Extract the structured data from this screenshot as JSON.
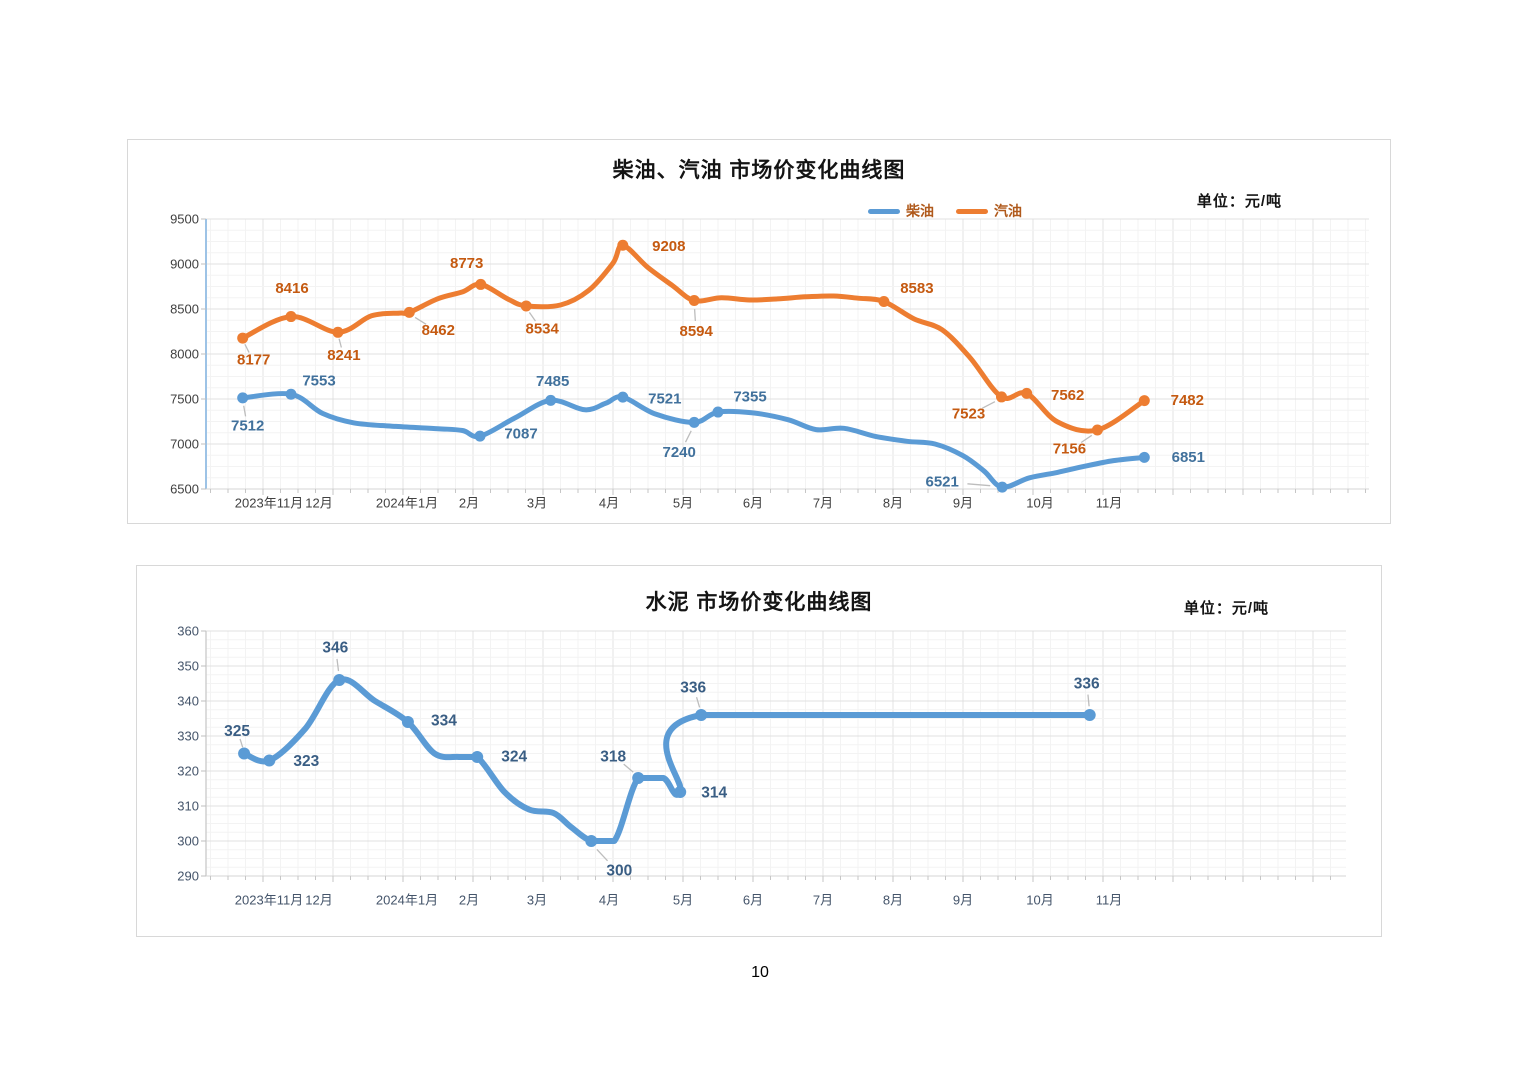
{
  "page": {
    "number": "10"
  },
  "chart_data": [
    {
      "type": "line",
      "title": "柴油、汽油 市场价变化曲线图",
      "unit_label": "单位：元/吨",
      "legend": [
        {
          "name": "柴油",
          "color": "#5B9BD5"
        },
        {
          "name": "汽油",
          "color": "#ED7D31"
        }
      ],
      "legend_position": "top",
      "grid": true,
      "y_axis": {
        "min": 6500,
        "max": 9500,
        "step": 500,
        "ticks": [
          "9500",
          "9000",
          "8500",
          "8000",
          "7500",
          "7000",
          "6500"
        ]
      },
      "x_ticks": [
        "2023年11月",
        "12月",
        "2024年1月",
        "2月",
        "3月",
        "4月",
        "5月",
        "6月",
        "7月",
        "8月",
        "9月",
        "10月",
        "11月"
      ],
      "series": [
        {
          "name": "柴油",
          "color": "#5B9BD5",
          "label_color": "#41719C",
          "points": [
            {
              "t": -0.29,
              "v": 7512,
              "label": "7512",
              "dx": 5,
              "dy": 28,
              "leader": true
            },
            {
              "t": 0.4,
              "v": 7553,
              "label": "7553",
              "dx": 28,
              "dy": -13
            },
            {
              "t": 0.85,
              "v": 7340
            },
            {
              "t": 1.3,
              "v": 7235
            },
            {
              "t": 1.9,
              "v": 7195
            },
            {
              "t": 2.5,
              "v": 7170
            },
            {
              "t": 2.85,
              "v": 7150
            },
            {
              "t": 3.1,
              "v": 7087,
              "label": "7087",
              "dx": 41,
              "dy": -2
            },
            {
              "t": 3.6,
              "v": 7290
            },
            {
              "t": 4.11,
              "v": 7485,
              "label": "7485",
              "dx": 2,
              "dy": -19
            },
            {
              "t": 4.6,
              "v": 7380
            },
            {
              "t": 4.9,
              "v": 7455
            },
            {
              "t": 5.14,
              "v": 7521,
              "label": "7521",
              "dx": 42,
              "dy": 2
            },
            {
              "t": 5.6,
              "v": 7335
            },
            {
              "t": 6.16,
              "v": 7240,
              "label": "7240",
              "dx": -15,
              "dy": 30,
              "leader": true
            },
            {
              "t": 6.5,
              "v": 7355,
              "label": "7355",
              "dx": 32,
              "dy": -15
            },
            {
              "t": 7.0,
              "v": 7345
            },
            {
              "t": 7.5,
              "v": 7270
            },
            {
              "t": 7.9,
              "v": 7160
            },
            {
              "t": 8.3,
              "v": 7175
            },
            {
              "t": 8.75,
              "v": 7085
            },
            {
              "t": 9.2,
              "v": 7030
            },
            {
              "t": 9.6,
              "v": 7000
            },
            {
              "t": 10.0,
              "v": 6870
            },
            {
              "t": 10.3,
              "v": 6700
            },
            {
              "t": 10.56,
              "v": 6521,
              "label": "6521",
              "dx": -60,
              "dy": -5,
              "leader": true
            },
            {
              "t": 10.95,
              "v": 6625
            },
            {
              "t": 11.35,
              "v": 6685
            },
            {
              "t": 11.75,
              "v": 6755
            },
            {
              "t": 12.15,
              "v": 6815
            },
            {
              "t": 12.59,
              "v": 6851,
              "label": "6851",
              "dx": 44,
              "dy": 0
            }
          ]
        },
        {
          "name": "汽油",
          "color": "#ED7D31",
          "label_color": "#C55A11",
          "points": [
            {
              "t": -0.29,
              "v": 8177,
              "label": "8177",
              "dx": 11,
              "dy": 22,
              "leader": true
            },
            {
              "t": 0.4,
              "v": 8416,
              "label": "8416",
              "dx": 1,
              "dy": -28
            },
            {
              "t": 1.07,
              "v": 8241,
              "label": "8241",
              "dx": 6,
              "dy": 23,
              "leader": true
            },
            {
              "t": 1.55,
              "v": 8425
            },
            {
              "t": 1.95,
              "v": 8455
            },
            {
              "t": 2.09,
              "v": 8462,
              "label": "8462",
              "dx": 29,
              "dy": 18,
              "leader": true
            },
            {
              "t": 2.5,
              "v": 8615
            },
            {
              "t": 2.85,
              "v": 8690
            },
            {
              "t": 3.11,
              "v": 8773,
              "label": "8773",
              "dx": -14,
              "dy": -21
            },
            {
              "t": 3.5,
              "v": 8610
            },
            {
              "t": 3.76,
              "v": 8534,
              "label": "8534",
              "dx": 16,
              "dy": 23,
              "leader": true
            },
            {
              "t": 4.25,
              "v": 8545
            },
            {
              "t": 4.65,
              "v": 8705
            },
            {
              "t": 5.0,
              "v": 9010
            },
            {
              "t": 5.14,
              "v": 9208,
              "label": "9208",
              "dx": 46,
              "dy": 1
            },
            {
              "t": 5.5,
              "v": 8960
            },
            {
              "t": 5.85,
              "v": 8760
            },
            {
              "t": 6.16,
              "v": 8594,
              "label": "8594",
              "dx": 2,
              "dy": 31,
              "leader": true
            },
            {
              "t": 6.55,
              "v": 8625
            },
            {
              "t": 6.95,
              "v": 8600
            },
            {
              "t": 7.35,
              "v": 8612
            },
            {
              "t": 7.75,
              "v": 8635
            },
            {
              "t": 8.15,
              "v": 8645
            },
            {
              "t": 8.5,
              "v": 8620
            },
            {
              "t": 8.87,
              "v": 8583,
              "label": "8583",
              "dx": 33,
              "dy": -13
            },
            {
              "t": 9.3,
              "v": 8390
            },
            {
              "t": 9.7,
              "v": 8270
            },
            {
              "t": 10.1,
              "v": 7960
            },
            {
              "t": 10.55,
              "v": 7523,
              "label": "7523",
              "dx": -33,
              "dy": 17,
              "leader": true
            },
            {
              "t": 10.91,
              "v": 7562,
              "label": "7562",
              "dx": 41,
              "dy": 2
            },
            {
              "t": 11.35,
              "v": 7245
            },
            {
              "t": 11.92,
              "v": 7156,
              "label": "7156",
              "dx": -28,
              "dy": 19,
              "leader": true
            },
            {
              "t": 12.59,
              "v": 7482,
              "label": "7482",
              "dx": 43,
              "dy": 0
            }
          ]
        }
      ]
    },
    {
      "type": "line",
      "title": "水泥 市场价变化曲线图",
      "unit_label": "单位：元/吨",
      "legend": [],
      "grid": true,
      "y_axis": {
        "min": 290,
        "max": 360,
        "step": 10,
        "ticks": [
          "360",
          "350",
          "340",
          "330",
          "320",
          "310",
          "300",
          "290"
        ]
      },
      "x_ticks": [
        "2023年11月",
        "12月",
        "2024年1月",
        "2月",
        "3月",
        "4月",
        "5月",
        "6月",
        "7月",
        "8月",
        "9月",
        "10月",
        "11月"
      ],
      "series": [
        {
          "name": "水泥",
          "color": "#5B9BD5",
          "label_color": "#3A5E84",
          "points": [
            {
              "t": -0.27,
              "v": 325,
              "label": "325",
              "dx": -7,
              "dy": -22,
              "leader": true
            },
            {
              "t": 0.09,
              "v": 323,
              "label": "323",
              "dx": 37,
              "dy": 1
            },
            {
              "t": 0.6,
              "v": 332
            },
            {
              "t": 1.09,
              "v": 346,
              "label": "346",
              "dx": -4,
              "dy": -32,
              "leader": true
            },
            {
              "t": 1.6,
              "v": 340
            },
            {
              "t": 2.07,
              "v": 334,
              "label": "334",
              "dx": 36,
              "dy": -1
            },
            {
              "t": 2.45,
              "v": 325
            },
            {
              "t": 2.8,
              "v": 324
            },
            {
              "t": 3.06,
              "v": 324,
              "label": "324",
              "dx": 37,
              "dy": 0
            },
            {
              "t": 3.45,
              "v": 314
            },
            {
              "t": 3.8,
              "v": 309
            },
            {
              "t": 4.15,
              "v": 308
            },
            {
              "t": 4.4,
              "v": 304
            },
            {
              "t": 4.69,
              "v": 300,
              "label": "300",
              "dx": 28,
              "dy": 30,
              "leader": true
            },
            {
              "t": 5.02,
              "v": 300
            },
            {
              "t": 5.36,
              "v": 318,
              "label": "318",
              "dx": -25,
              "dy": -21,
              "leader": true
            },
            {
              "t": 5.72,
              "v": 318
            },
            {
              "t": 5.96,
              "v": 314,
              "label": "314",
              "dx": 34,
              "dy": 1
            },
            {
              "t": 6.26,
              "v": 336,
              "label": "336",
              "dx": -8,
              "dy": -27,
              "leader": true
            },
            {
              "t": 11.81,
              "v": 336,
              "label": "336",
              "dx": -3,
              "dy": -31,
              "leader": true
            }
          ]
        }
      ]
    }
  ]
}
